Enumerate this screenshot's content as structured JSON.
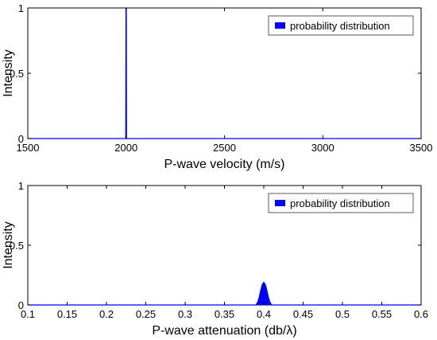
{
  "chart_data": [
    {
      "type": "area",
      "xlabel": "P-wave velocity (m/s)",
      "ylabel": "Intensity",
      "xlim": [
        1500,
        3500
      ],
      "ylim": [
        0,
        1
      ],
      "xticks": [
        "1500",
        "2000",
        "2500",
        "3000",
        "3500"
      ],
      "yticks": [
        "0",
        "0.5",
        "1"
      ],
      "grid": false,
      "legend": {
        "position": "top-right",
        "entries": [
          "probability distribution"
        ]
      },
      "series": [
        {
          "name": "probability distribution",
          "color": "#0000ff",
          "x": [
            1500,
            1998,
            1999,
            2000,
            2001,
            2002,
            3500
          ],
          "y": [
            0,
            0,
            1,
            1,
            1,
            0,
            0
          ]
        }
      ]
    },
    {
      "type": "area",
      "xlabel": "P-wave attenuation (db/λ)",
      "ylabel": "Intensity",
      "xlim": [
        0.1,
        0.6
      ],
      "ylim": [
        0,
        1
      ],
      "xticks": [
        "0.1",
        "0.15",
        "0.2",
        "0.25",
        "0.3",
        "0.35",
        "0.4",
        "0.45",
        "0.5",
        "0.55",
        "0.6"
      ],
      "yticks": [
        "0",
        "0.5",
        "1"
      ],
      "grid": false,
      "legend": {
        "position": "top-right",
        "entries": [
          "probability distribution"
        ]
      },
      "series": [
        {
          "name": "probability distribution",
          "color": "#0000ff",
          "x": [
            0.1,
            0.39,
            0.392,
            0.394,
            0.396,
            0.398,
            0.4,
            0.402,
            0.404,
            0.406,
            0.408,
            0.41,
            0.6
          ],
          "y": [
            0,
            0,
            0.02,
            0.06,
            0.12,
            0.17,
            0.19,
            0.17,
            0.12,
            0.06,
            0.02,
            0,
            0
          ]
        }
      ]
    }
  ]
}
